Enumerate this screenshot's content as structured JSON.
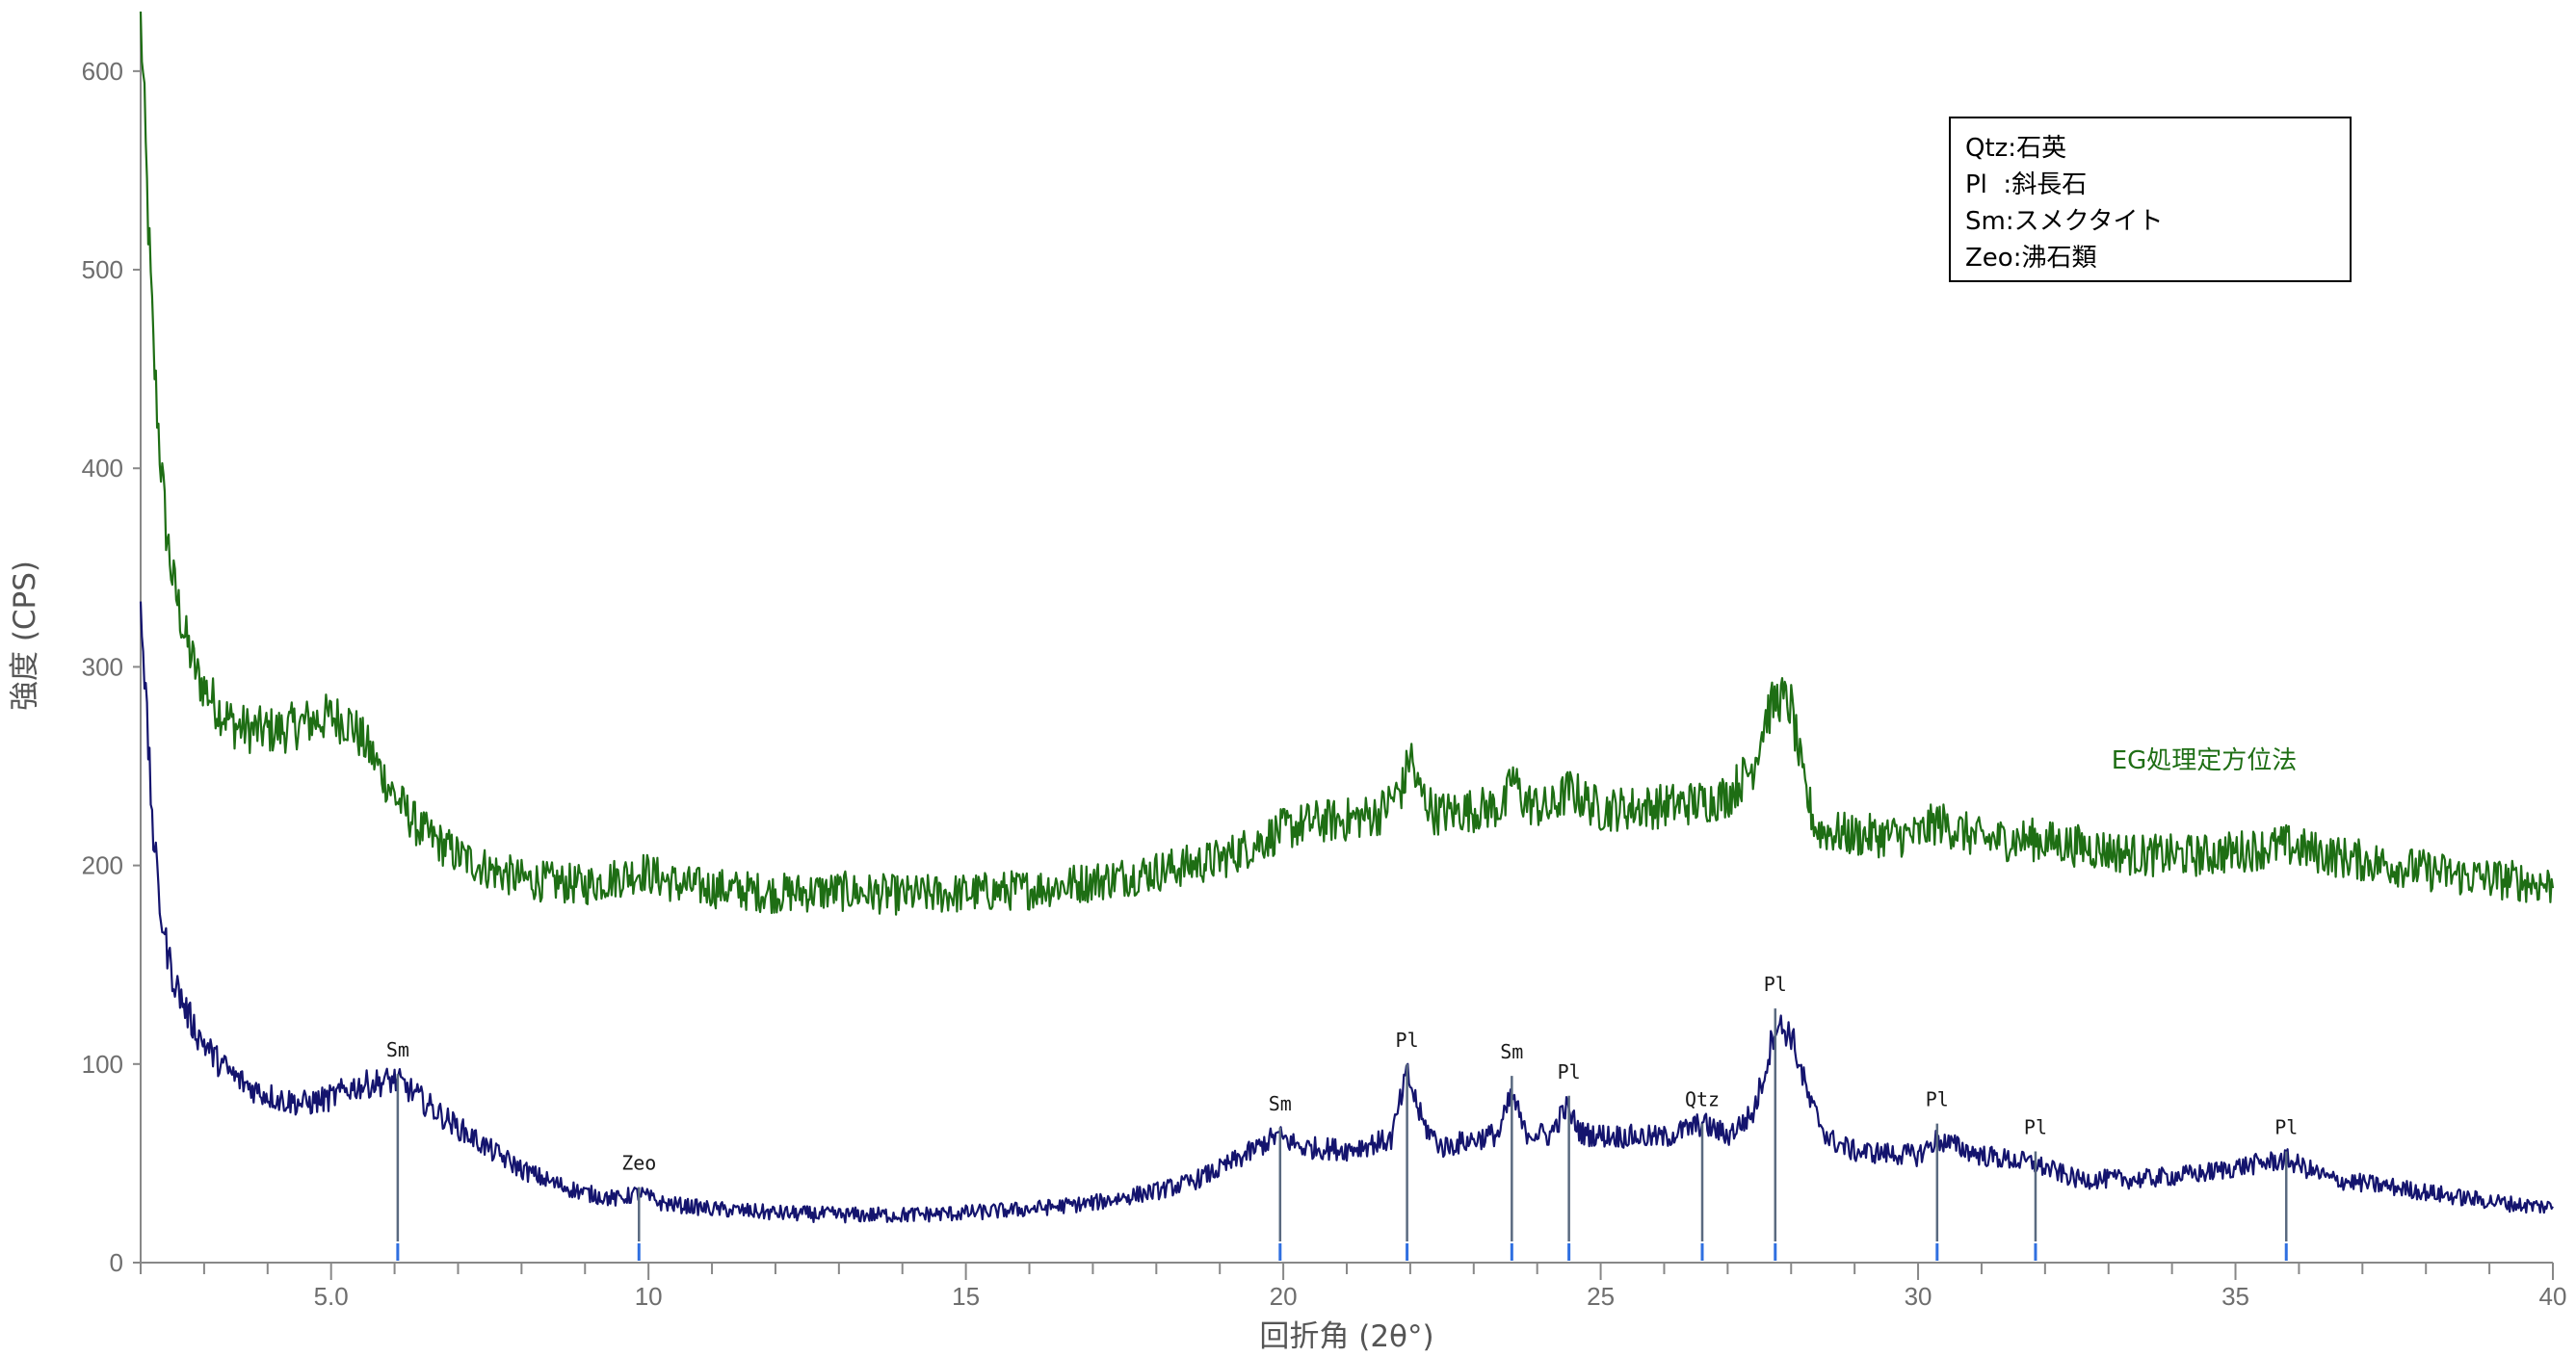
{
  "chart_data": {
    "type": "line",
    "xlabel": "回折角 (2θ°)",
    "ylabel": "強度 (CPS)",
    "xlim": [
      2,
      40
    ],
    "ylim": [
      0,
      630
    ],
    "x_ticks": [
      {
        "value": 5,
        "label": "5.0"
      },
      {
        "value": 10,
        "label": "10"
      },
      {
        "value": 15,
        "label": "15"
      },
      {
        "value": 20,
        "label": "20"
      },
      {
        "value": 25,
        "label": "25"
      },
      {
        "value": 30,
        "label": "30"
      },
      {
        "value": 35,
        "label": "35"
      },
      {
        "value": 40,
        "label": "40"
      }
    ],
    "y_ticks": [
      {
        "value": 0,
        "label": "0"
      },
      {
        "value": 100,
        "label": "100"
      },
      {
        "value": 200,
        "label": "200"
      },
      {
        "value": 300,
        "label": "300"
      },
      {
        "value": 400,
        "label": "400"
      },
      {
        "value": 500,
        "label": "500"
      },
      {
        "value": 600,
        "label": "600"
      }
    ],
    "grid": false,
    "series": [
      {
        "name": "EG処理定方位法",
        "color": "#1e6e14",
        "x": [
          2.0,
          2.1,
          2.2,
          2.3,
          2.4,
          2.5,
          2.7,
          2.9,
          3.2,
          3.5,
          3.8,
          4.2,
          4.6,
          5.0,
          5.3,
          5.6,
          6.0,
          6.4,
          7.0,
          7.5,
          8.0,
          9.0,
          9.9,
          10.5,
          12.0,
          13.0,
          14.0,
          15.0,
          16.0,
          17.0,
          18.0,
          19.0,
          19.5,
          20.0,
          20.5,
          21.0,
          21.5,
          21.9,
          22.0,
          22.1,
          22.4,
          23.0,
          23.5,
          23.6,
          23.8,
          24.2,
          24.5,
          25.0,
          26.0,
          26.6,
          27.0,
          27.4,
          27.6,
          27.8,
          28.0,
          28.2,
          28.4,
          29.0,
          30.0,
          30.3,
          31.0,
          31.8,
          32.5,
          33.5,
          34.5,
          35.0,
          35.8,
          36.5,
          37.5,
          38.5,
          39.5,
          40.0
        ],
        "y": [
          630,
          540,
          460,
          410,
          370,
          345,
          315,
          295,
          280,
          270,
          268,
          268,
          272,
          275,
          272,
          258,
          235,
          218,
          205,
          198,
          193,
          190,
          197,
          190,
          186,
          187,
          185,
          186,
          188,
          192,
          197,
          203,
          210,
          218,
          222,
          223,
          226,
          240,
          258,
          240,
          226,
          228,
          230,
          245,
          232,
          228,
          238,
          228,
          230,
          232,
          235,
          250,
          275,
          285,
          280,
          240,
          218,
          215,
          215,
          222,
          213,
          213,
          210,
          205,
          205,
          207,
          210,
          205,
          200,
          195,
          192,
          190
        ]
      },
      {
        "name": "",
        "color": "#14146e",
        "x": [
          2.0,
          2.1,
          2.2,
          2.3,
          2.4,
          2.5,
          2.7,
          2.9,
          3.2,
          3.5,
          3.8,
          4.2,
          4.6,
          5.0,
          5.3,
          5.6,
          6.0,
          6.2,
          6.5,
          7.0,
          7.5,
          8.0,
          8.5,
          9.0,
          9.5,
          9.85,
          10.2,
          11.0,
          12.0,
          13.0,
          14.0,
          15.0,
          16.0,
          17.0,
          18.0,
          18.5,
          19.0,
          19.5,
          19.9,
          20.3,
          21.0,
          21.7,
          21.95,
          22.2,
          22.5,
          23.0,
          23.4,
          23.6,
          23.8,
          24.2,
          24.45,
          24.7,
          25.0,
          26.0,
          26.6,
          27.0,
          27.4,
          27.6,
          27.75,
          28.0,
          28.3,
          28.6,
          29.0,
          30.0,
          30.3,
          31.0,
          31.8,
          32.5,
          33.5,
          34.5,
          35.0,
          35.8,
          36.5,
          37.5,
          38.5,
          39.5,
          40.0
        ],
        "y": [
          340,
          270,
          215,
          180,
          160,
          145,
          128,
          115,
          102,
          93,
          87,
          82,
          80,
          83,
          88,
          90,
          92,
          88,
          80,
          68,
          57,
          47,
          40,
          35,
          32,
          35,
          30,
          27,
          25,
          24,
          24,
          25,
          27,
          30,
          36,
          40,
          47,
          56,
          64,
          58,
          57,
          62,
          95,
          70,
          58,
          62,
          65,
          85,
          66,
          64,
          78,
          65,
          64,
          63,
          70,
          64,
          75,
          98,
          120,
          115,
          80,
          62,
          56,
          54,
          62,
          54,
          50,
          42,
          42,
          45,
          48,
          52,
          42,
          38,
          33,
          29,
          28
        ]
      }
    ],
    "peak_labels": [
      {
        "x": 6.05,
        "label": "Sm",
        "y": 95
      },
      {
        "x": 9.85,
        "label": "Zeo",
        "y": 38
      },
      {
        "x": 19.95,
        "label": "Sm",
        "y": 68
      },
      {
        "x": 21.95,
        "label": "Pl",
        "y": 100
      },
      {
        "x": 23.6,
        "label": "Sm",
        "y": 94
      },
      {
        "x": 24.5,
        "label": "Pl",
        "y": 84
      },
      {
        "x": 26.6,
        "label": "Qtz",
        "y": 70
      },
      {
        "x": 27.75,
        "label": "Pl",
        "y": 128
      },
      {
        "x": 30.3,
        "label": "Pl",
        "y": 70
      },
      {
        "x": 31.85,
        "label": "Pl",
        "y": 56
      },
      {
        "x": 35.8,
        "label": "Pl",
        "y": 56
      }
    ],
    "legend": {
      "placement": "top-right",
      "lines": [
        "Qtz:石英",
        "Pl  :斜長石",
        "Sm:スメクタイト",
        "Zeo:沸石類"
      ]
    }
  }
}
